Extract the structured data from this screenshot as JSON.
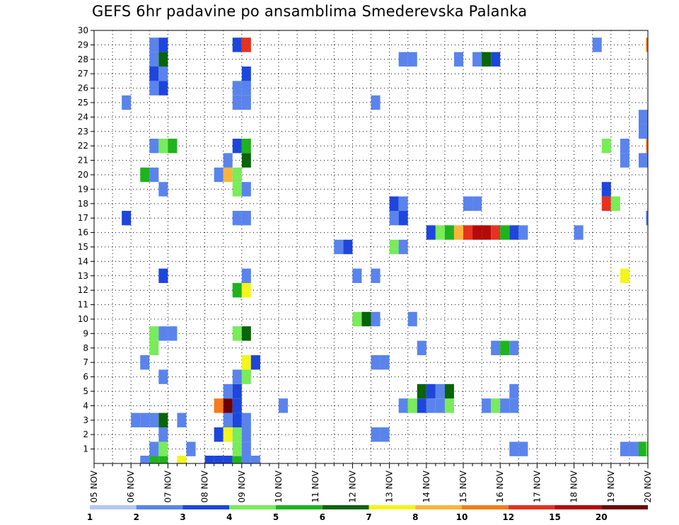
{
  "title": "GEFS 6hr padavine po ansamblima Smederevska Palanka",
  "chart_data": {
    "type": "heatmap",
    "title": "GEFS 6hr padavine po ansamblima Smederevska Palanka",
    "x_tick_labels": [
      "05 NOV",
      "06 NOV",
      "07 NOV",
      "08 NOV",
      "09 NOV",
      "10 NOV",
      "11 NOV",
      "12 NOV",
      "13 NOV",
      "14 NOV",
      "15 NOV",
      "16 NOV",
      "17 NOV",
      "18 NOV",
      "19 NOV",
      "20 NOV"
    ],
    "x_range_days": [
      0,
      15
    ],
    "step_hours": 6,
    "y_tick_labels": [
      "1",
      "2",
      "3",
      "4",
      "5",
      "6",
      "7",
      "8",
      "9",
      "10",
      "11",
      "12",
      "13",
      "14",
      "15",
      "16",
      "17",
      "18",
      "19",
      "20",
      "21",
      "22",
      "23",
      "24",
      "25",
      "26",
      "27",
      "28",
      "29",
      "30"
    ],
    "y_range": [
      0,
      30
    ],
    "grid": "dotted",
    "legend": {
      "position": "bottom",
      "labels": [
        "1",
        "2",
        "3",
        "4",
        "5",
        "6",
        "7",
        "8",
        "10",
        "12",
        "15",
        "20"
      ],
      "colors": [
        "#b4c8f4",
        "#5a84ec",
        "#1e46dc",
        "#78ec5a",
        "#1eb41e",
        "#0a640a",
        "#f4f41e",
        "#fab43c",
        "#f47c1e",
        "#e6321e",
        "#b40a0a",
        "#6e0000"
      ]
    },
    "member_rows": [
      0,
      1,
      2,
      3,
      4,
      5,
      6,
      7,
      8,
      9,
      10,
      11,
      12,
      13,
      14,
      15,
      16,
      17,
      18,
      19,
      20,
      21,
      22,
      23,
      24,
      25,
      26,
      27,
      28,
      29,
      30
    ],
    "cells": [
      [
        1.25,
        0,
        1
      ],
      [
        1.5,
        0,
        4
      ],
      [
        1.75,
        0,
        4
      ],
      [
        2.25,
        0,
        6
      ],
      [
        3.0,
        0,
        2
      ],
      [
        3.25,
        0,
        2
      ],
      [
        3.5,
        0,
        2
      ],
      [
        3.75,
        0,
        4
      ],
      [
        4.0,
        0,
        1
      ],
      [
        4.25,
        0,
        1
      ],
      [
        1.5,
        1,
        1
      ],
      [
        1.75,
        1,
        3
      ],
      [
        2.5,
        1,
        1
      ],
      [
        3.75,
        1,
        3
      ],
      [
        4.0,
        1,
        1
      ],
      [
        14.5,
        1,
        1
      ],
      [
        14.75,
        1,
        1
      ],
      [
        11.25,
        1,
        1
      ],
      [
        11.5,
        1,
        1
      ],
      [
        14.25,
        1,
        1
      ],
      [
        14.75,
        1,
        4
      ],
      [
        14.75,
        1,
        4
      ],
      [
        14.95,
        1,
        3
      ],
      [
        1.75,
        2,
        1
      ],
      [
        3.25,
        2,
        2
      ],
      [
        3.5,
        2,
        6
      ],
      [
        3.75,
        2,
        3
      ],
      [
        4.0,
        2,
        1
      ],
      [
        7.5,
        2,
        1
      ],
      [
        7.75,
        2,
        1
      ],
      [
        1.0,
        3,
        1
      ],
      [
        1.25,
        3,
        1
      ],
      [
        1.5,
        3,
        1
      ],
      [
        1.75,
        3,
        5
      ],
      [
        2.25,
        3,
        1
      ],
      [
        3.5,
        3,
        1
      ],
      [
        3.75,
        3,
        2
      ],
      [
        4.0,
        3,
        1
      ],
      [
        3.25,
        4,
        8
      ],
      [
        3.5,
        4,
        11
      ],
      [
        3.75,
        4,
        2
      ],
      [
        5.0,
        4,
        1
      ],
      [
        8.25,
        4,
        1
      ],
      [
        8.5,
        4,
        3
      ],
      [
        8.75,
        4,
        2
      ],
      [
        9.0,
        4,
        1
      ],
      [
        9.25,
        4,
        1
      ],
      [
        9.5,
        4,
        3
      ],
      [
        10.5,
        4,
        1
      ],
      [
        10.75,
        4,
        3
      ],
      [
        11.0,
        4,
        1
      ],
      [
        11.25,
        4,
        1
      ],
      [
        3.5,
        5,
        1
      ],
      [
        3.75,
        5,
        2
      ],
      [
        8.75,
        5,
        5
      ],
      [
        9.0,
        5,
        2
      ],
      [
        9.25,
        5,
        1
      ],
      [
        9.5,
        5,
        5
      ],
      [
        11.25,
        5,
        1
      ],
      [
        1.75,
        6,
        1
      ],
      [
        3.75,
        6,
        1
      ],
      [
        4.0,
        6,
        3
      ],
      [
        1.25,
        7,
        1
      ],
      [
        4.0,
        7,
        6
      ],
      [
        4.25,
        7,
        2
      ],
      [
        7.5,
        7,
        1
      ],
      [
        7.75,
        7,
        1
      ],
      [
        1.5,
        8,
        3
      ],
      [
        8.75,
        8,
        1
      ],
      [
        10.75,
        8,
        1
      ],
      [
        11.0,
        8,
        4
      ],
      [
        11.25,
        8,
        1
      ],
      [
        1.5,
        9,
        3
      ],
      [
        1.75,
        9,
        1
      ],
      [
        2.0,
        9,
        1
      ],
      [
        3.75,
        9,
        3
      ],
      [
        4.0,
        9,
        5
      ],
      [
        7.0,
        10,
        3
      ],
      [
        7.25,
        10,
        5
      ],
      [
        7.5,
        10,
        1
      ],
      [
        8.5,
        10,
        1
      ],
      [
        3.75,
        12,
        4
      ],
      [
        4.0,
        12,
        6
      ],
      [
        1.75,
        13,
        2
      ],
      [
        4.0,
        13,
        1
      ],
      [
        7.0,
        13,
        1
      ],
      [
        7.5,
        13,
        1
      ],
      [
        14.25,
        13,
        6
      ],
      [
        6.5,
        15,
        1
      ],
      [
        6.75,
        15,
        2
      ],
      [
        8.0,
        15,
        3
      ],
      [
        8.25,
        15,
        1
      ],
      [
        9.0,
        16,
        2
      ],
      [
        9.25,
        16,
        3
      ],
      [
        9.5,
        16,
        4
      ],
      [
        9.75,
        16,
        7
      ],
      [
        10.0,
        16,
        9
      ],
      [
        10.25,
        16,
        10
      ],
      [
        10.5,
        16,
        10
      ],
      [
        10.75,
        16,
        9
      ],
      [
        11.0,
        16,
        4
      ],
      [
        11.25,
        16,
        2
      ],
      [
        11.5,
        16,
        1
      ],
      [
        13.0,
        16,
        1
      ],
      [
        0.75,
        17,
        2
      ],
      [
        3.75,
        17,
        1
      ],
      [
        4.0,
        17,
        1
      ],
      [
        8.0,
        17,
        1
      ],
      [
        8.25,
        17,
        2
      ],
      [
        14.95,
        17,
        1
      ],
      [
        8.0,
        18,
        2
      ],
      [
        8.25,
        18,
        1
      ],
      [
        10.0,
        18,
        1
      ],
      [
        10.25,
        18,
        1
      ],
      [
        13.75,
        18,
        9
      ],
      [
        14.0,
        18,
        3
      ],
      [
        1.75,
        19,
        1
      ],
      [
        3.75,
        19,
        3
      ],
      [
        4.0,
        19,
        1
      ],
      [
        13.75,
        19,
        2
      ],
      [
        1.25,
        20,
        4
      ],
      [
        1.5,
        20,
        1
      ],
      [
        3.25,
        20,
        1
      ],
      [
        3.5,
        20,
        7
      ],
      [
        3.75,
        20,
        3
      ],
      [
        3.5,
        21,
        1
      ],
      [
        4.0,
        21,
        5
      ],
      [
        14.25,
        21,
        1
      ],
      [
        14.75,
        21,
        1
      ],
      [
        1.5,
        22,
        1
      ],
      [
        1.75,
        22,
        3
      ],
      [
        2.0,
        22,
        4
      ],
      [
        3.75,
        22,
        2
      ],
      [
        4.0,
        22,
        4
      ],
      [
        13.75,
        22,
        3
      ],
      [
        14.25,
        22,
        1
      ],
      [
        14.95,
        22,
        8
      ],
      [
        14.75,
        23,
        1
      ],
      [
        14.75,
        24,
        1
      ],
      [
        15.0,
        24,
        2
      ],
      [
        15.25,
        24,
        4
      ],
      [
        0.75,
        25,
        1
      ],
      [
        3.75,
        25,
        1
      ],
      [
        4.0,
        25,
        1
      ],
      [
        7.5,
        25,
        1
      ],
      [
        1.5,
        26,
        1
      ],
      [
        1.75,
        26,
        2
      ],
      [
        3.75,
        26,
        1
      ],
      [
        4.0,
        26,
        1
      ],
      [
        1.5,
        27,
        2
      ],
      [
        1.75,
        27,
        1
      ],
      [
        4.0,
        27,
        2
      ],
      [
        1.5,
        28,
        1
      ],
      [
        1.75,
        28,
        5
      ],
      [
        8.25,
        28,
        1
      ],
      [
        8.5,
        28,
        1
      ],
      [
        9.75,
        28,
        1
      ],
      [
        10.25,
        28,
        1
      ],
      [
        10.5,
        28,
        5
      ],
      [
        10.75,
        28,
        2
      ],
      [
        1.5,
        29,
        1
      ],
      [
        1.75,
        29,
        2
      ],
      [
        3.75,
        29,
        2
      ],
      [
        4.0,
        29,
        9
      ],
      [
        13.5,
        29,
        1
      ],
      [
        14.95,
        29,
        8
      ]
    ]
  }
}
